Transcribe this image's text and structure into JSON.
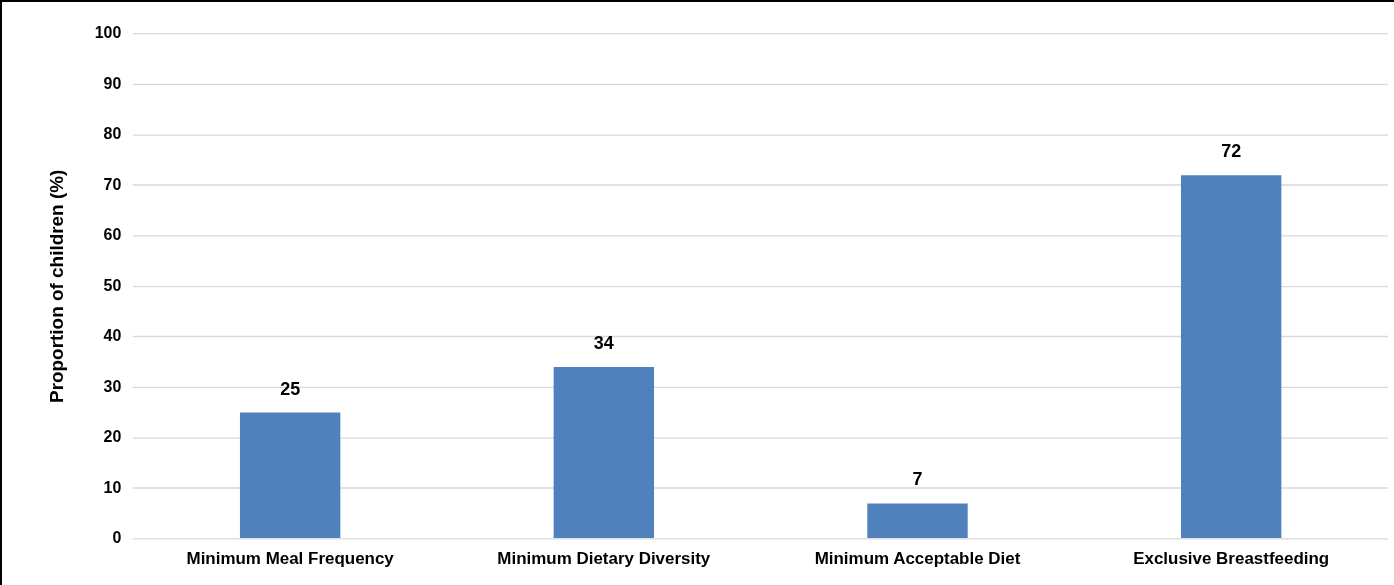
{
  "chart_data": {
    "type": "bar",
    "ylabel": "Proportion of children (%)",
    "categories": [
      "Minimum Meal Frequency",
      "Minimum Dietary Diversity",
      "Minimum Acceptable Diet",
      "Exclusive Breastfeeding"
    ],
    "values": [
      25,
      34,
      7,
      72
    ],
    "color": "#4f81bd",
    "ylim": [
      0,
      100
    ],
    "yticks": [
      0,
      10,
      20,
      30,
      40,
      50,
      60,
      70,
      80,
      90,
      100
    ],
    "grid": "y",
    "data_labels": true
  }
}
